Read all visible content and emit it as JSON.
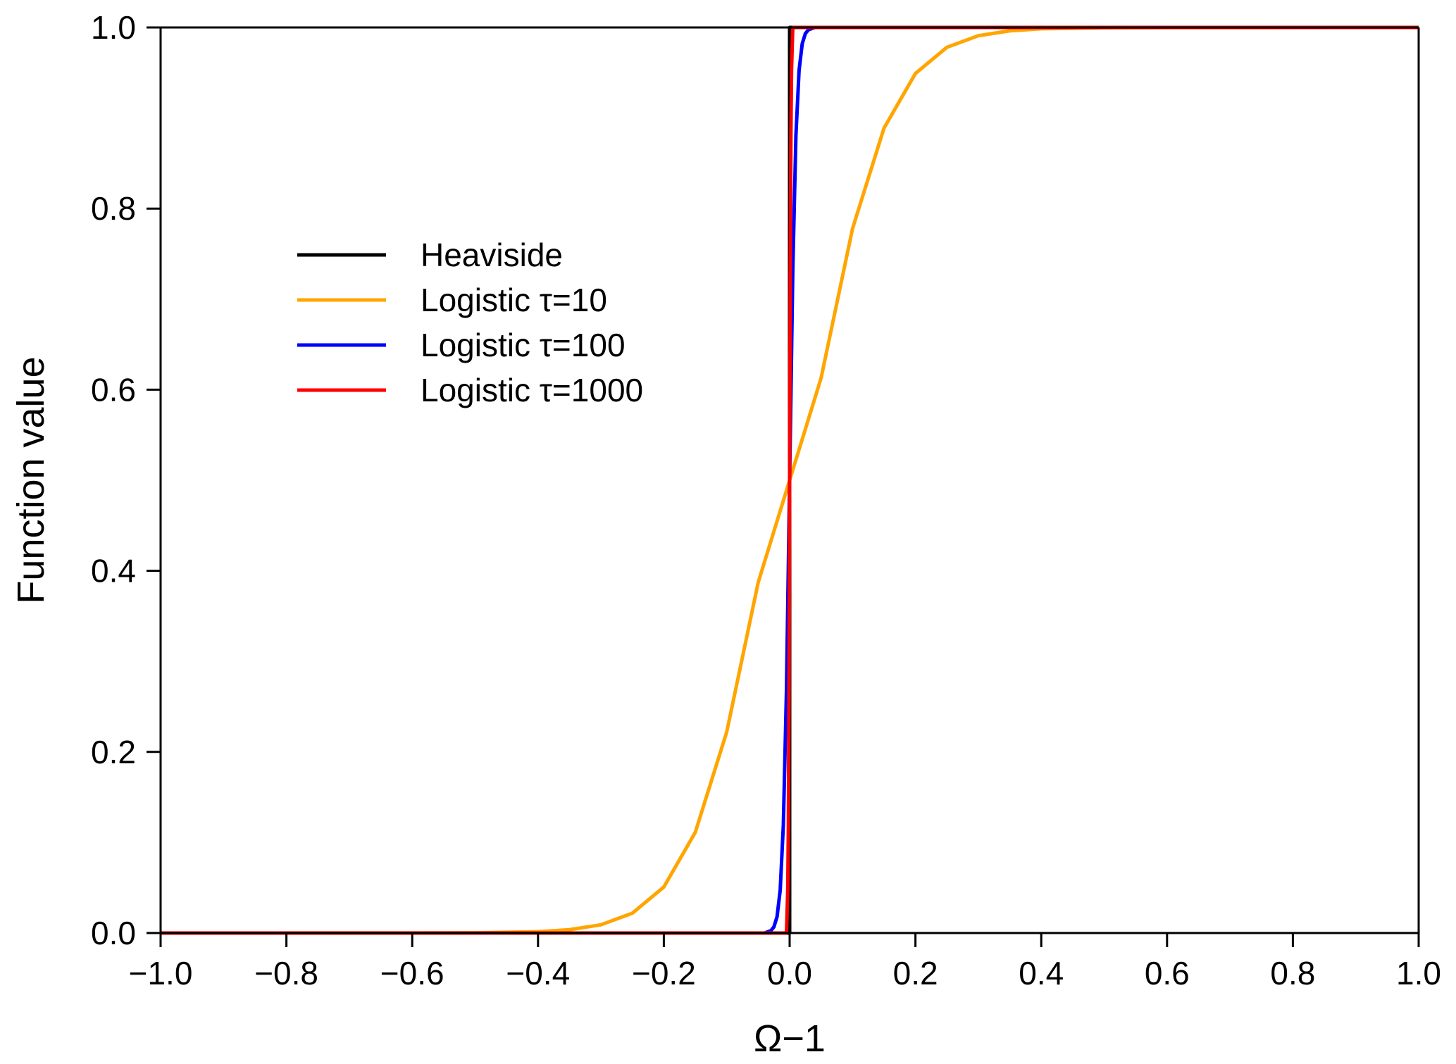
{
  "chart_data": {
    "type": "line",
    "xlabel": "Ω−1",
    "ylabel": "Function value",
    "xlim": [
      -1.0,
      1.0
    ],
    "ylim": [
      0.0,
      1.0
    ],
    "x_ticks": [
      {
        "value": -1.0,
        "label": "−1.0"
      },
      {
        "value": -0.8,
        "label": "−0.8"
      },
      {
        "value": -0.6,
        "label": "−0.6"
      },
      {
        "value": -0.4,
        "label": "−0.4"
      },
      {
        "value": -0.2,
        "label": "−0.2"
      },
      {
        "value": 0.0,
        "label": "0.0"
      },
      {
        "value": 0.2,
        "label": "0.2"
      },
      {
        "value": 0.4,
        "label": "0.4"
      },
      {
        "value": 0.6,
        "label": "0.6"
      },
      {
        "value": 0.8,
        "label": "0.8"
      },
      {
        "value": 1.0,
        "label": "1.0"
      }
    ],
    "y_ticks": [
      {
        "value": 0.0,
        "label": "0.0"
      },
      {
        "value": 0.2,
        "label": "0.2"
      },
      {
        "value": 0.4,
        "label": "0.4"
      },
      {
        "value": 0.6,
        "label": "0.6"
      },
      {
        "value": 0.8,
        "label": "0.8"
      },
      {
        "value": 1.0,
        "label": "1.0"
      }
    ],
    "grid": false,
    "legend_position": "upper-left",
    "series": [
      {
        "name": "Heaviside",
        "color": "#000000",
        "x": [
          -1.0,
          0.0,
          0.0,
          1.0
        ],
        "y": [
          0.0,
          0.0,
          1.0,
          1.0
        ]
      },
      {
        "name": "Logistic τ=10",
        "color": "#FFA500",
        "x": [
          -1.0,
          -0.6,
          -0.5,
          -0.4,
          -0.35,
          -0.3,
          -0.25,
          -0.2,
          -0.15,
          -0.1,
          -0.05,
          0.0,
          0.05,
          0.1,
          0.15,
          0.2,
          0.25,
          0.3,
          0.35,
          0.4,
          0.5,
          0.6,
          1.0
        ],
        "y": [
          0.0,
          0.0001,
          0.0003,
          0.0015,
          0.0037,
          0.0091,
          0.0219,
          0.0508,
          0.1112,
          0.2221,
          0.3871,
          0.5,
          0.6129,
          0.7779,
          0.8888,
          0.9492,
          0.9781,
          0.9909,
          0.9963,
          0.9985,
          0.9997,
          0.9999,
          1.0
        ]
      },
      {
        "name": "Logistic τ=100",
        "color": "#0000FF",
        "x": [
          -1.0,
          -0.04,
          -0.03,
          -0.025,
          -0.02,
          -0.015,
          -0.01,
          -0.005,
          0.0,
          0.005,
          0.01,
          0.015,
          0.02,
          0.025,
          0.03,
          0.04,
          1.0
        ],
        "y": [
          0.0,
          0.0,
          0.0025,
          0.0067,
          0.018,
          0.0474,
          0.1192,
          0.2689,
          0.5,
          0.7311,
          0.8808,
          0.9526,
          0.982,
          0.9933,
          0.9975,
          1.0,
          1.0
        ]
      },
      {
        "name": "Logistic τ=1000",
        "color": "#FF0000",
        "x": [
          -1.0,
          -0.005,
          -0.003,
          -0.002,
          -0.001,
          0.0,
          0.001,
          0.002,
          0.003,
          0.005,
          1.0
        ],
        "y": [
          0.0,
          0.0,
          0.0474,
          0.1192,
          0.2689,
          0.5,
          0.7311,
          0.8808,
          0.9526,
          1.0,
          1.0
        ]
      }
    ]
  }
}
